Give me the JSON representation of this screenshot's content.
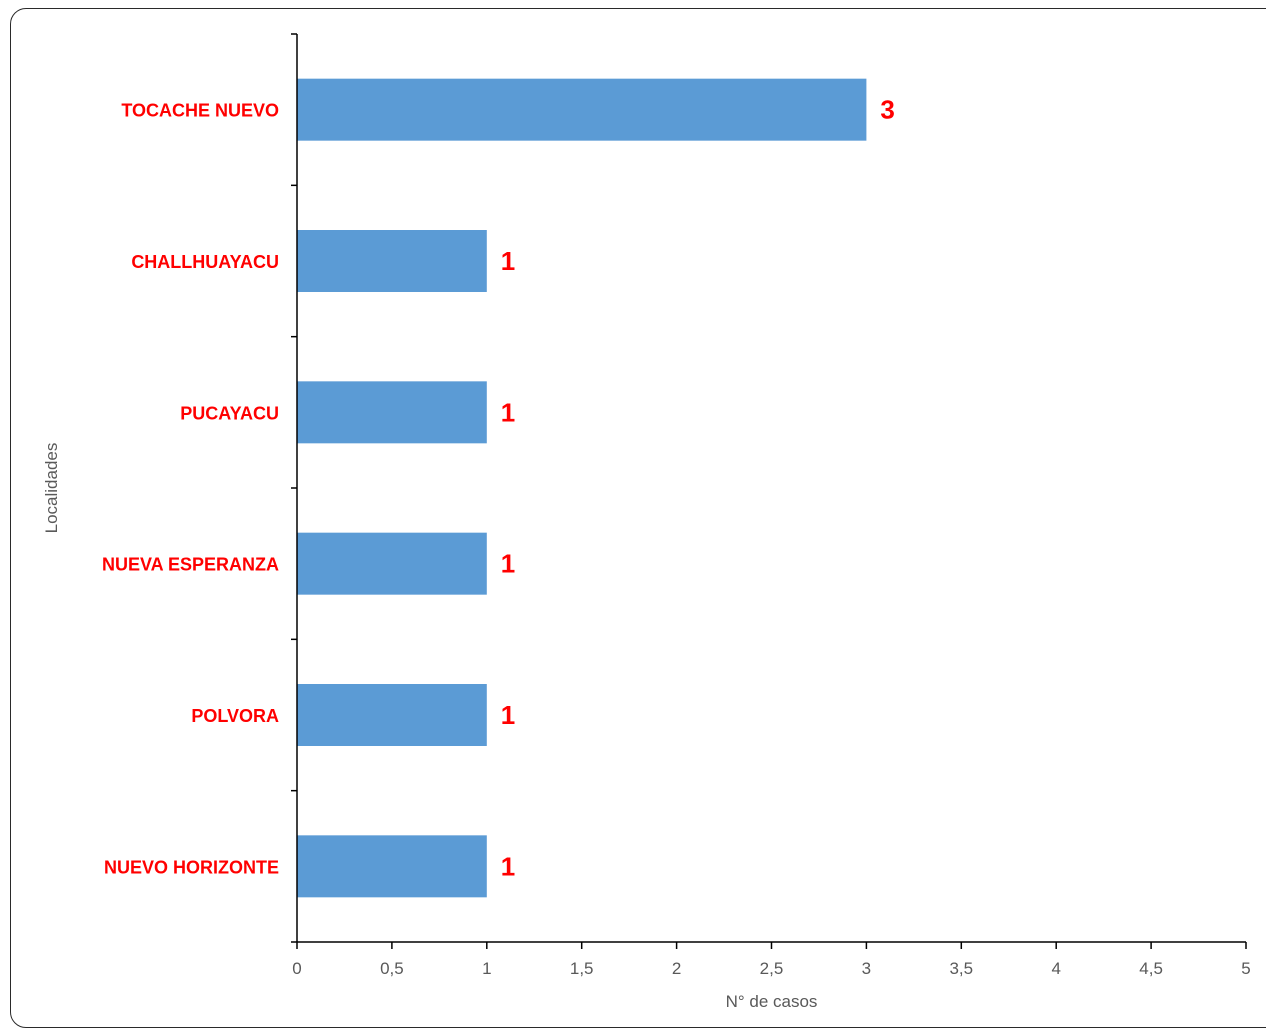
{
  "chart_data": {
    "type": "bar",
    "orientation": "horizontal",
    "categories": [
      "TOCACHE NUEVO",
      "CHALLHUAYACU",
      "PUCAYACU",
      "NUEVA ESPERANZA",
      "POLVORA",
      "NUEVO HORIZONTE"
    ],
    "values": [
      3,
      1,
      1,
      1,
      1,
      1
    ],
    "data_labels": [
      "3",
      "1",
      "1",
      "1",
      "1",
      "1"
    ],
    "xlabel": "N° de casos",
    "ylabel": "Localidades",
    "xlim": [
      0,
      5
    ],
    "x_ticks": [
      "0",
      "0,5",
      "1",
      "1,5",
      "2",
      "2,5",
      "3",
      "3,5",
      "4",
      "4,5",
      "5"
    ],
    "grid": false,
    "legend": "none",
    "colors": {
      "bar": "#5b9bd5",
      "category_label": "#ff0000",
      "data_label": "#ff0000",
      "axis": "#000000",
      "tick_label": "#595959"
    }
  }
}
